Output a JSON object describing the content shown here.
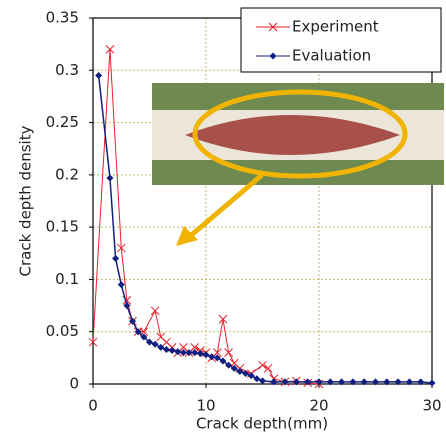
{
  "chart_data": {
    "type": "line",
    "x_label": "Crack depth(mm)",
    "y_label": "Crack depth density",
    "xlim": [
      0,
      30
    ],
    "ylim": [
      0,
      0.35
    ],
    "xticks": [
      0,
      10,
      20,
      30
    ],
    "yticks": [
      0,
      0.05,
      0.1,
      0.15,
      0.2,
      0.25,
      0.3,
      0.35
    ],
    "grid": true,
    "legend": "upper right",
    "series": [
      {
        "name": "Experiment",
        "color": "#e8202a",
        "marker": "x",
        "x": [
          0,
          1.5,
          2.5,
          3,
          3.5,
          4,
          4.5,
          5.5,
          6,
          6.5,
          7,
          7.5,
          8,
          8.5,
          9,
          9.5,
          10,
          10.5,
          11,
          11.5,
          12,
          12.5,
          13,
          14,
          15,
          15.5,
          16,
          17,
          18,
          19,
          20
        ],
        "values": [
          0.04,
          0.32,
          0.13,
          0.08,
          0.06,
          0.05,
          0.05,
          0.07,
          0.045,
          0.04,
          0.035,
          0.03,
          0.035,
          0.03,
          0.035,
          0.032,
          0.03,
          0.025,
          0.03,
          0.062,
          0.03,
          0.02,
          0.015,
          0.01,
          0.018,
          0.015,
          0.005,
          0.002,
          0.003,
          0.001,
          0
        ]
      },
      {
        "name": "Evaluation",
        "color": "#102080",
        "marker": "diamond",
        "x": [
          0.5,
          1.5,
          2,
          2.5,
          3,
          3.5,
          4,
          4.5,
          5,
          5.5,
          6,
          6.5,
          7,
          7.5,
          8,
          8.5,
          9,
          9.5,
          10,
          10.5,
          11,
          11.5,
          12,
          12.5,
          13,
          13.5,
          14,
          14.5,
          15,
          16,
          17,
          18,
          19,
          20,
          21,
          22,
          23,
          24,
          25,
          26,
          27,
          28,
          29,
          30
        ],
        "values": [
          0.295,
          0.197,
          0.12,
          0.095,
          0.075,
          0.06,
          0.05,
          0.045,
          0.04,
          0.038,
          0.035,
          0.033,
          0.032,
          0.031,
          0.03,
          0.03,
          0.03,
          0.029,
          0.028,
          0.026,
          0.025,
          0.022,
          0.018,
          0.015,
          0.012,
          0.01,
          0.008,
          0.005,
          0.003,
          0.002,
          0.002,
          0.002,
          0.002,
          0.002,
          0.002,
          0.002,
          0.002,
          0.002,
          0.002,
          0.002,
          0.002,
          0.002,
          0.002,
          0.001
        ]
      }
    ]
  }
}
